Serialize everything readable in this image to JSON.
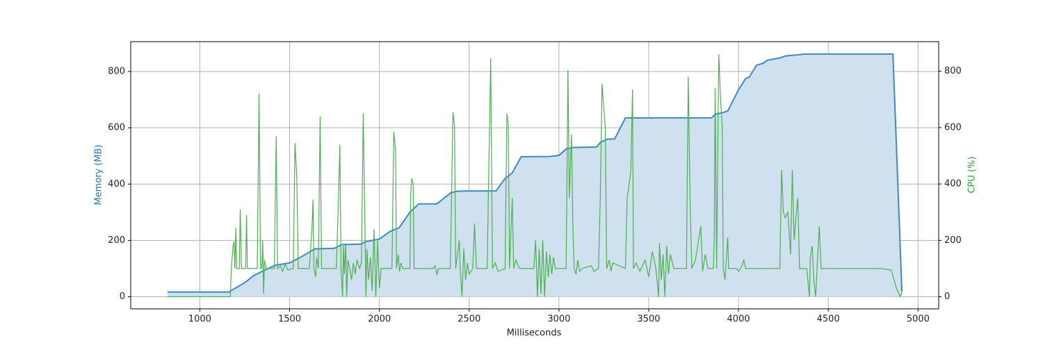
{
  "chart_data": {
    "type": "line",
    "xlabel": "Milliseconds",
    "ylabel": "Memory (MB)",
    "y2label": "CPU (%)",
    "xlim": [
      615,
      5115
    ],
    "ylim": [
      -43,
      906
    ],
    "y2lim": [
      -43,
      905
    ],
    "xticks": [
      1000,
      1500,
      2000,
      2500,
      3000,
      3500,
      4000,
      4500,
      5000
    ],
    "yticks": [
      0,
      200,
      400,
      600,
      800
    ],
    "y2ticks": [
      0,
      200,
      400,
      600,
      800
    ],
    "grid": true,
    "ylabel_color": "#1f77b4",
    "y2label_color": "#2ca02c",
    "series": [
      {
        "color": "#3d89c3",
        "fill": "#cfe0ee",
        "axis": "y",
        "x": [
          820,
          1165,
          1170,
          1250,
          1300,
          1340,
          1380,
          1420,
          1500,
          1560,
          1640,
          1750,
          1790,
          1900,
          1920,
          2000,
          2060,
          2110,
          2170,
          2220,
          2320,
          2400,
          2440,
          2650,
          2700,
          2740,
          2790,
          2950,
          3000,
          3040,
          3080,
          3210,
          3230,
          3270,
          3310,
          3370,
          3850,
          3870,
          3920,
          3940,
          4000,
          4040,
          4060,
          4100,
          4140,
          4160,
          4230,
          4260,
          4370,
          4860,
          4910
        ],
        "values": [
          17,
          17,
          20,
          50,
          75,
          88,
          100,
          112,
          120,
          140,
          170,
          172,
          185,
          187,
          195,
          205,
          232,
          245,
          300,
          330,
          330,
          370,
          375,
          376,
          420,
          440,
          497,
          498,
          502,
          525,
          530,
          532,
          548,
          560,
          560,
          635,
          635,
          648,
          655,
          660,
          735,
          775,
          780,
          822,
          830,
          840,
          848,
          855,
          862,
          862,
          18
        ]
      },
      {
        "color": "#4caf50",
        "axis": "y2",
        "x": [
          820,
          1170,
          1175,
          1185,
          1190,
          1195,
          1200,
          1205,
          1220,
          1225,
          1232,
          1255,
          1260,
          1265,
          1320,
          1330,
          1338,
          1345,
          1350,
          1355,
          1360,
          1370,
          1415,
          1425,
          1433,
          1450,
          1460,
          1475,
          1490,
          1520,
          1530,
          1540,
          1548,
          1610,
          1625,
          1630,
          1635,
          1645,
          1650,
          1660,
          1670,
          1678,
          1760,
          1770,
          1780,
          1786,
          1795,
          1800,
          1805,
          1812,
          1818,
          1825,
          1835,
          1845,
          1855,
          1865,
          1875,
          1890,
          1900,
          1910,
          1918,
          1925,
          1930,
          1940,
          1950,
          1960,
          1970,
          1980,
          1990,
          2000,
          2010,
          2070,
          2080,
          2090,
          2095,
          2105,
          2112,
          2120,
          2130,
          2170,
          2175,
          2180,
          2188,
          2193,
          2210,
          2300,
          2310,
          2320,
          2330,
          2395,
          2410,
          2418,
          2425,
          2445,
          2450,
          2460,
          2470,
          2480,
          2490,
          2500,
          2520,
          2530,
          2540,
          2600,
          2620,
          2630,
          2645,
          2660,
          2700,
          2710,
          2718,
          2725,
          2740,
          2748,
          2760,
          2780,
          2860,
          2870,
          2880,
          2890,
          2900,
          2910,
          2920,
          2930,
          2940,
          2950,
          2960,
          2970,
          2980,
          3040,
          3050,
          3058,
          3070,
          3078,
          3085,
          3095,
          3105,
          3115,
          3130,
          3180,
          3195,
          3220,
          3230,
          3240,
          3258,
          3266,
          3280,
          3290,
          3300,
          3370,
          3380,
          3400,
          3410,
          3415,
          3430,
          3450,
          3480,
          3500,
          3520,
          3540,
          3555,
          3560,
          3570,
          3580,
          3590,
          3600,
          3610,
          3620,
          3640,
          3710,
          3720,
          3730,
          3740,
          3760,
          3790,
          3800,
          3815,
          3830,
          3860,
          3865,
          3870,
          3878,
          3890,
          3900,
          3910,
          3915,
          3925,
          3940,
          3945,
          3990,
          4000,
          4020,
          4030,
          4040,
          4230,
          4240,
          4250,
          4260,
          4275,
          4290,
          4300,
          4310,
          4320,
          4330,
          4340,
          4380,
          4395,
          4400,
          4410,
          4420,
          4430,
          4440,
          4450,
          4460,
          4500,
          4600,
          4700,
          4790,
          4850,
          4880,
          4900,
          4910
        ],
        "values": [
          0,
          0,
          100,
          180,
          195,
          100,
          245,
          100,
          100,
          310,
          100,
          100,
          290,
          100,
          100,
          720,
          100,
          100,
          200,
          10,
          130,
          100,
          100,
          570,
          100,
          110,
          90,
          115,
          95,
          100,
          545,
          420,
          100,
          100,
          250,
          345,
          100,
          70,
          140,
          100,
          640,
          100,
          100,
          300,
          540,
          100,
          0,
          180,
          80,
          190,
          0,
          130,
          100,
          60,
          120,
          80,
          130,
          100,
          120,
          650,
          300,
          0,
          170,
          60,
          140,
          20,
          240,
          0,
          200,
          30,
          100,
          100,
          585,
          520,
          100,
          150,
          90,
          120,
          100,
          100,
          370,
          420,
          400,
          100,
          100,
          100,
          110,
          80,
          100,
          100,
          655,
          610,
          100,
          200,
          100,
          0,
          170,
          60,
          120,
          80,
          100,
          260,
          100,
          100,
          845,
          100,
          120,
          90,
          100,
          650,
          610,
          100,
          350,
          100,
          130,
          100,
          100,
          200,
          0,
          170,
          10,
          200,
          0,
          160,
          70,
          150,
          80,
          140,
          100,
          100,
          805,
          350,
          575,
          240,
          100,
          80,
          130,
          90,
          100,
          110,
          90,
          100,
          350,
          755,
          600,
          100,
          130,
          90,
          120,
          100,
          350,
          440,
          735,
          100,
          120,
          90,
          130,
          70,
          160,
          100,
          0,
          190,
          60,
          150,
          0,
          180,
          80,
          150,
          100,
          100,
          780,
          350,
          100,
          130,
          250,
          90,
          150,
          100,
          100,
          200,
          740,
          100,
          860,
          700,
          600,
          100,
          60,
          210,
          100,
          100,
          90,
          110,
          130,
          100,
          100,
          450,
          300,
          280,
          300,
          150,
          450,
          200,
          280,
          350,
          100,
          100,
          0,
          140,
          180,
          60,
          0,
          130,
          250,
          100,
          100,
          100,
          100,
          100,
          95,
          30,
          0,
          15
        ]
      }
    ]
  }
}
